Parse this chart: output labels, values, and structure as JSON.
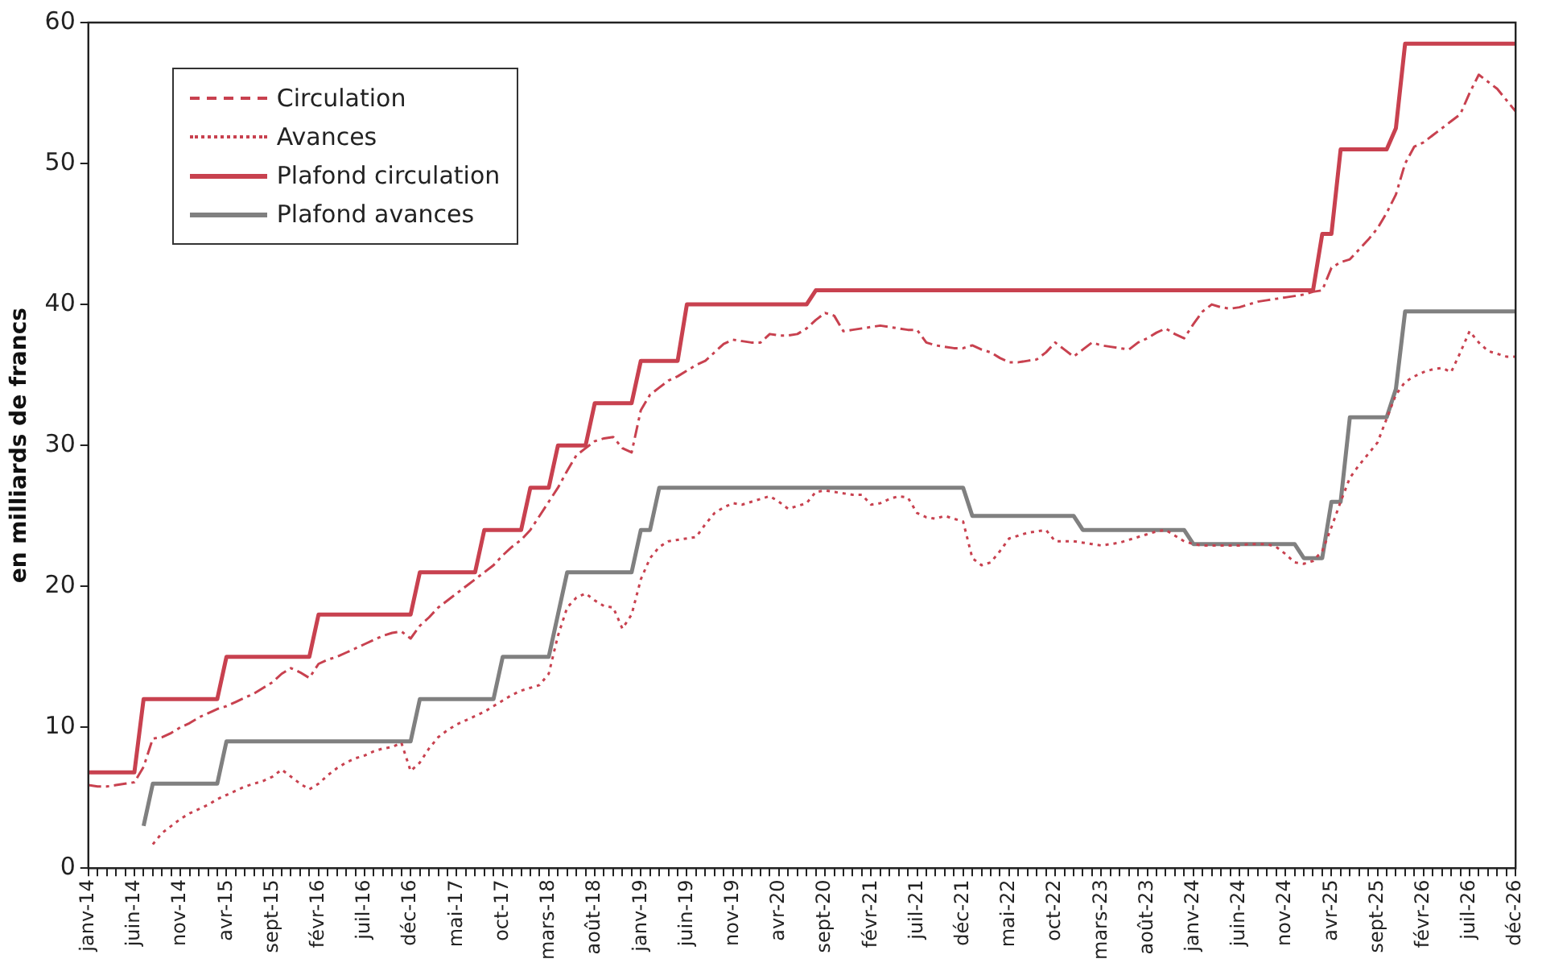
{
  "chart_data": {
    "type": "line",
    "ylabel": "en milliards de francs",
    "categories": [
      "janv-14",
      null,
      null,
      null,
      null,
      "juin-14",
      null,
      null,
      null,
      null,
      "nov-14",
      null,
      null,
      null,
      null,
      "avr-15",
      null,
      null,
      null,
      null,
      "sept-15",
      null,
      null,
      null,
      null,
      "févr-16",
      null,
      null,
      null,
      null,
      "juil-16",
      null,
      null,
      null,
      null,
      "déc-16",
      null,
      null,
      null,
      null,
      "mai-17",
      null,
      null,
      null,
      null,
      "oct-17",
      null,
      null,
      null,
      null,
      "mars-18",
      null,
      null,
      null,
      null,
      "août-18",
      null,
      null,
      null,
      null,
      "janv-19",
      null,
      null,
      null,
      null,
      "juin-19",
      null,
      null,
      null,
      null,
      "nov-19",
      null,
      null,
      null,
      null,
      "avr-20",
      null,
      null,
      null,
      null,
      "sept-20",
      null,
      null,
      null,
      null,
      "févr-21",
      null,
      null,
      null,
      null,
      "juil-21",
      null,
      null,
      null,
      null,
      "déc-21",
      null,
      null,
      null,
      null,
      "mai-22",
      null,
      null,
      null,
      null,
      "oct-22",
      null,
      null,
      null,
      null,
      "mars-23",
      null,
      null,
      null,
      null,
      "août-23",
      null,
      null,
      null,
      null,
      "janv-24",
      null,
      null,
      null,
      null,
      "juin-24",
      null,
      null,
      null,
      null,
      "nov-24",
      null,
      null,
      null,
      null,
      "avr-25",
      null,
      null,
      null,
      null,
      "sept-25",
      null,
      null,
      null,
      null,
      "févr-26",
      null,
      null,
      null,
      null,
      "juil-26",
      null,
      null,
      null,
      null,
      "déc-26"
    ],
    "series": [
      {
        "name": "Circulation",
        "color": "#c8414f",
        "line_style": "dashed",
        "values": [
          5.9,
          5.8,
          5.8,
          5.9,
          6.0,
          6.1,
          7.2,
          9.2,
          9.3,
          9.6,
          10.0,
          10.3,
          10.7,
          11.0,
          11.3,
          11.5,
          11.8,
          12.1,
          12.4,
          12.8,
          13.2,
          13.8,
          14.2,
          13.9,
          13.5,
          14.5,
          14.8,
          15.0,
          15.3,
          15.6,
          15.9,
          16.2,
          16.5,
          16.7,
          16.8,
          16.3,
          17.2,
          17.8,
          18.5,
          19.0,
          19.5,
          20.0,
          20.5,
          21.0,
          21.5,
          22.2,
          22.8,
          23.3,
          24.0,
          25.0,
          26.0,
          27.0,
          28.2,
          29.3,
          29.8,
          30.3,
          30.5,
          30.6,
          29.8,
          29.5,
          32.5,
          33.6,
          34.1,
          34.6,
          34.9,
          35.3,
          35.7,
          36.0,
          36.6,
          37.2,
          37.5,
          37.4,
          37.3,
          37.3,
          37.9,
          37.8,
          37.8,
          37.9,
          38.3,
          38.9,
          39.4,
          39.2,
          38.1,
          38.2,
          38.3,
          38.4,
          38.5,
          38.4,
          38.3,
          38.2,
          38.2,
          37.3,
          37.1,
          37.0,
          36.9,
          36.9,
          37.1,
          36.8,
          36.6,
          36.2,
          35.9,
          35.9,
          36.0,
          36.1,
          36.6,
          37.3,
          36.8,
          36.3,
          36.8,
          37.3,
          37.1,
          37.0,
          36.9,
          36.8,
          37.3,
          37.6,
          38.0,
          38.3,
          37.9,
          37.6,
          38.6,
          39.5,
          40.0,
          39.8,
          39.7,
          39.8,
          40.0,
          40.2,
          40.3,
          40.4,
          40.5,
          40.6,
          40.7,
          40.9,
          41.0,
          42.6,
          43.0,
          43.2,
          43.9,
          44.6,
          45.4,
          46.5,
          47.8,
          50.0,
          51.2,
          51.5,
          52.0,
          52.5,
          53.0,
          53.5,
          55.0,
          56.3,
          55.8,
          55.3,
          54.5,
          53.7
        ]
      },
      {
        "name": "Avances",
        "color": "#c8414f",
        "line_style": "dotted",
        "values": [
          null,
          null,
          null,
          null,
          null,
          null,
          null,
          1.7,
          2.5,
          3.0,
          3.5,
          3.9,
          4.2,
          4.5,
          4.9,
          5.2,
          5.5,
          5.8,
          6.0,
          6.2,
          6.5,
          7.0,
          6.5,
          6.0,
          5.6,
          6.0,
          6.6,
          7.1,
          7.5,
          7.8,
          8.0,
          8.3,
          8.5,
          8.6,
          8.9,
          6.9,
          7.5,
          8.5,
          9.3,
          9.8,
          10.2,
          10.5,
          10.8,
          11.1,
          11.5,
          11.9,
          12.3,
          12.6,
          12.8,
          13.0,
          13.8,
          16.5,
          18.5,
          19.2,
          19.5,
          19.0,
          18.6,
          18.5,
          17.0,
          18.0,
          20.5,
          22.0,
          22.8,
          23.2,
          23.3,
          23.4,
          23.5,
          24.4,
          25.2,
          25.6,
          25.9,
          25.8,
          26.0,
          26.2,
          26.4,
          26.0,
          25.5,
          25.7,
          25.9,
          26.7,
          26.8,
          26.7,
          26.6,
          26.5,
          26.5,
          25.8,
          25.9,
          26.2,
          26.4,
          26.3,
          25.2,
          24.9,
          24.8,
          25.0,
          24.8,
          24.6,
          22.0,
          21.5,
          21.7,
          22.5,
          23.4,
          23.6,
          23.8,
          23.9,
          24.0,
          23.2,
          23.2,
          23.2,
          23.1,
          23.0,
          22.9,
          23.0,
          23.1,
          23.3,
          23.5,
          23.7,
          23.9,
          24.0,
          23.6,
          23.2,
          23.0,
          22.9,
          22.9,
          22.9,
          22.9,
          22.9,
          23.0,
          23.0,
          23.0,
          22.8,
          22.3,
          21.7,
          21.6,
          21.8,
          22.5,
          24.2,
          26.0,
          27.7,
          28.6,
          29.4,
          30.2,
          31.9,
          33.6,
          34.5,
          34.9,
          35.2,
          35.4,
          35.5,
          35.2,
          36.6,
          38.1,
          37.3,
          36.7,
          36.5,
          36.3,
          36.3
        ]
      },
      {
        "name": "Plafond circulation",
        "color": "#c8414f",
        "line_style": "solid",
        "values": [
          6.8,
          6.8,
          6.8,
          6.8,
          6.8,
          6.8,
          12,
          12,
          12,
          12,
          12,
          12,
          12,
          12,
          12,
          15,
          15,
          15,
          15,
          15,
          15,
          15,
          15,
          15,
          15,
          18,
          18,
          18,
          18,
          18,
          18,
          18,
          18,
          18,
          18,
          18,
          21,
          21,
          21,
          21,
          21,
          21,
          21,
          24,
          24,
          24,
          24,
          24,
          27,
          27,
          27,
          30,
          30,
          30,
          30,
          33,
          33,
          33,
          33,
          33,
          36,
          36,
          36,
          36,
          36,
          40,
          40,
          40,
          40,
          40,
          40,
          40,
          40,
          40,
          40,
          40,
          40,
          40,
          40,
          41,
          41,
          41,
          41,
          41,
          41,
          41,
          41,
          41,
          41,
          41,
          41,
          41,
          41,
          41,
          41,
          41,
          41,
          41,
          41,
          41,
          41,
          41,
          41,
          41,
          41,
          41,
          41,
          41,
          41,
          41,
          41,
          41,
          41,
          41,
          41,
          41,
          41,
          41,
          41,
          41,
          41,
          41,
          41,
          41,
          41,
          41,
          41,
          41,
          41,
          41,
          41,
          41,
          41,
          41,
          45,
          45,
          51,
          51,
          51,
          51,
          51,
          51,
          52.5,
          58.5,
          58.5,
          58.5,
          58.5,
          58.5,
          58.5,
          58.5,
          58.5,
          58.5,
          58.5,
          58.5,
          58.5,
          58.5
        ]
      },
      {
        "name": "Plafond avances",
        "color": "#808080",
        "line_style": "solid",
        "values": [
          null,
          null,
          null,
          null,
          null,
          null,
          3,
          6,
          6,
          6,
          6,
          6,
          6,
          6,
          6,
          9,
          9,
          9,
          9,
          9,
          9,
          9,
          9,
          9,
          9,
          9,
          9,
          9,
          9,
          9,
          9,
          9,
          9,
          9,
          9,
          9,
          12,
          12,
          12,
          12,
          12,
          12,
          12,
          12,
          12,
          15,
          15,
          15,
          15,
          15,
          15,
          18,
          21,
          21,
          21,
          21,
          21,
          21,
          21,
          21,
          24,
          24,
          27,
          27,
          27,
          27,
          27,
          27,
          27,
          27,
          27,
          27,
          27,
          27,
          27,
          27,
          27,
          27,
          27,
          27,
          27,
          27,
          27,
          27,
          27,
          27,
          27,
          27,
          27,
          27,
          27,
          27,
          27,
          27,
          27,
          27,
          25,
          25,
          25,
          25,
          25,
          25,
          25,
          25,
          25,
          25,
          25,
          25,
          24,
          24,
          24,
          24,
          24,
          24,
          24,
          24,
          24,
          24,
          24,
          24,
          23,
          23,
          23,
          23,
          23,
          23,
          23,
          23,
          23,
          23,
          23,
          23,
          22,
          22,
          22,
          26,
          26,
          32,
          32,
          32,
          32,
          32,
          34,
          39.5,
          39.5,
          39.5,
          39.5,
          39.5,
          39.5,
          39.5,
          39.5,
          39.5,
          39.5,
          39.5,
          39.5,
          39.5
        ]
      }
    ],
    "ylim": [
      0,
      60
    ],
    "yticks": [
      0,
      10,
      20,
      30,
      40,
      50,
      60
    ],
    "grid": false,
    "legend": "top left",
    "marker": "none"
  }
}
